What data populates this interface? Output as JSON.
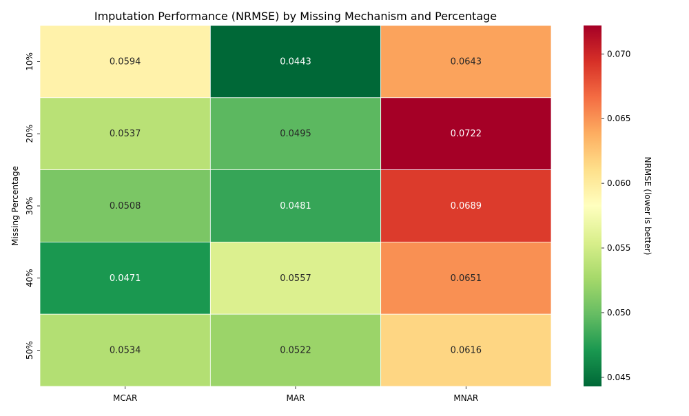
{
  "chart_data": {
    "type": "heatmap",
    "title": "Imputation Performance (NRMSE) by Missing Mechanism and Percentage",
    "xlabel": "",
    "ylabel": "Missing Percentage",
    "x_categories": [
      "MCAR",
      "MAR",
      "MNAR"
    ],
    "y_categories": [
      "10%",
      "20%",
      "30%",
      "40%",
      "50%"
    ],
    "values": [
      [
        0.0594,
        0.0443,
        0.0643
      ],
      [
        0.0537,
        0.0495,
        0.0722
      ],
      [
        0.0508,
        0.0481,
        0.0689
      ],
      [
        0.0471,
        0.0557,
        0.0651
      ],
      [
        0.0534,
        0.0522,
        0.0616
      ]
    ],
    "value_labels": [
      [
        "0.0594",
        "0.0443",
        "0.0643"
      ],
      [
        "0.0537",
        "0.0495",
        "0.0722"
      ],
      [
        "0.0508",
        "0.0481",
        "0.0689"
      ],
      [
        "0.0471",
        "0.0557",
        "0.0651"
      ],
      [
        "0.0534",
        "0.0522",
        "0.0616"
      ]
    ],
    "colormap": "RdYlGn_r",
    "colorbar": {
      "label": "NRMSE (lower is better)",
      "range": [
        0.0443,
        0.0722
      ],
      "ticks": [
        0.045,
        0.05,
        0.055,
        0.06,
        0.065,
        0.07
      ],
      "tick_labels": [
        "0.045",
        "0.050",
        "0.055",
        "0.060",
        "0.065",
        "0.070"
      ]
    },
    "grid": false
  }
}
